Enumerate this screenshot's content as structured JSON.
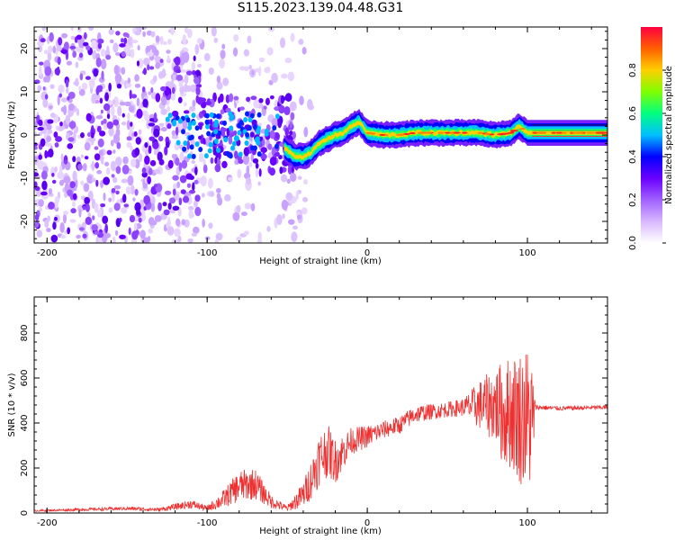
{
  "title": "S115.2023.139.04.48.G31",
  "chart_data": [
    {
      "type": "heatmap",
      "xlabel": "Height of straight line (km)",
      "ylabel": "Frequency (Hz)",
      "xlim": [
        -208,
        150
      ],
      "ylim": [
        -25,
        25
      ],
      "x_ticks": [
        -200,
        -100,
        0,
        100
      ],
      "y_ticks": [
        -20,
        -10,
        0,
        10,
        20
      ],
      "colorbar": {
        "label": "Normalized spectral amplitude",
        "range": [
          0.0,
          1.0
        ],
        "ticks": [
          0.0,
          0.2,
          0.4,
          0.6,
          0.8
        ],
        "colors": [
          "#ffffff",
          "#d8b8ff",
          "#a060ff",
          "#6a00ff",
          "#0000ff",
          "#00c0ff",
          "#00ff80",
          "#80ff00",
          "#ffd000",
          "#ff6000",
          "#ff0040"
        ]
      },
      "ridge": {
        "x": [
          -52,
          -45,
          -40,
          -35,
          -30,
          -25,
          -20,
          -15,
          -10,
          -5,
          0,
          10,
          20,
          30,
          40,
          50,
          60,
          70,
          80,
          90,
          95,
          100,
          110,
          120,
          130,
          140,
          150
        ],
        "frequency": [
          -3,
          -5,
          -5,
          -4,
          -2,
          -1,
          0,
          0.5,
          2,
          3,
          0.5,
          0,
          0,
          0.5,
          0.5,
          0.5,
          0.5,
          0.5,
          0,
          0.5,
          2,
          0.5,
          0.5,
          0.5,
          0.5,
          0.5,
          0.5
        ]
      },
      "scatter_region": {
        "x": [
          -208,
          -55
        ],
        "frequency": [
          -25,
          25
        ]
      }
    },
    {
      "type": "line",
      "xlabel": "Height of straight line (km)",
      "ylabel": "SNR (10 * v/v)",
      "xlim": [
        -208,
        150
      ],
      "ylim": [
        0,
        960
      ],
      "x_ticks": [
        -200,
        -100,
        0,
        100
      ],
      "y_ticks": [
        0,
        200,
        400,
        600,
        800
      ],
      "color": "#ee3030",
      "series": [
        {
          "x": [
            -208,
            -180,
            -150,
            -130,
            -110,
            -100,
            -90,
            -80,
            -70,
            -60,
            -50,
            -40,
            -35,
            -30,
            -25,
            -20,
            -10,
            0,
            10,
            20,
            30,
            40,
            50,
            60,
            70,
            80,
            85,
            90,
            95,
            100,
            103,
            105,
            120,
            150
          ],
          "y": [
            10,
            15,
            20,
            15,
            40,
            20,
            60,
            120,
            130,
            50,
            20,
            80,
            150,
            240,
            280,
            230,
            320,
            340,
            370,
            390,
            440,
            450,
            460,
            470,
            480,
            480,
            440,
            450,
            430,
            420,
            400,
            470,
            465,
            470
          ],
          "amplitude": [
            4,
            6,
            8,
            8,
            20,
            12,
            40,
            70,
            70,
            30,
            12,
            60,
            90,
            120,
            120,
            100,
            60,
            50,
            40,
            40,
            40,
            35,
            35,
            40,
            110,
            170,
            240,
            260,
            300,
            330,
            300,
            12,
            10,
            10
          ]
        }
      ]
    }
  ]
}
